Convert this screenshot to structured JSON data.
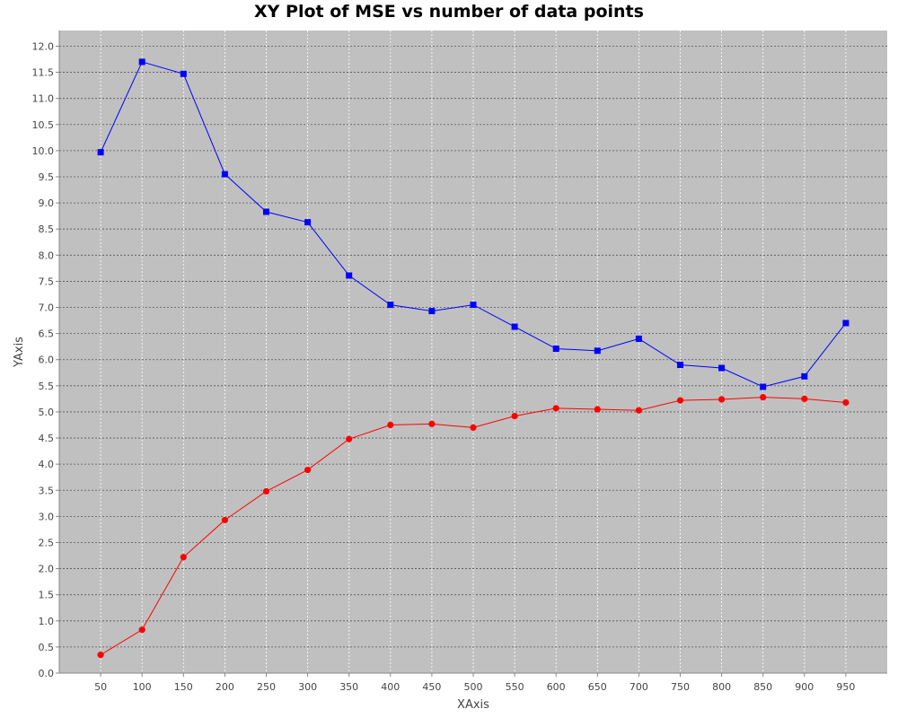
{
  "chart_data": {
    "type": "line",
    "title": "XY Plot of MSE vs number of data points",
    "xlabel": "XAxis",
    "ylabel": "YAxis",
    "x": [
      50,
      100,
      150,
      200,
      250,
      300,
      350,
      400,
      450,
      500,
      550,
      600,
      650,
      700,
      750,
      800,
      850,
      900,
      950
    ],
    "xticks": [
      "50",
      "100",
      "150",
      "200",
      "250",
      "300",
      "350",
      "400",
      "450",
      "500",
      "550",
      "600",
      "650",
      "700",
      "750",
      "800",
      "850",
      "900",
      "950"
    ],
    "xlim": [
      0,
      1000
    ],
    "ylim": [
      0,
      12.3
    ],
    "yticks": [
      "0.0",
      "0.5",
      "1.0",
      "1.5",
      "2.0",
      "2.5",
      "3.0",
      "3.5",
      "4.0",
      "4.5",
      "5.0",
      "5.5",
      "6.0",
      "6.5",
      "7.0",
      "7.5",
      "8.0",
      "8.5",
      "9.0",
      "9.5",
      "10.0",
      "10.5",
      "11.0",
      "11.5",
      "12.0"
    ],
    "grid": true,
    "series": [
      {
        "color": "#0000ff",
        "marker": "square",
        "values": [
          9.97,
          11.7,
          11.47,
          9.55,
          8.83,
          8.63,
          7.61,
          7.05,
          6.93,
          7.05,
          6.63,
          6.21,
          6.17,
          6.4,
          5.9,
          5.84,
          5.48,
          5.68,
          6.7
        ]
      },
      {
        "color": "#ff0000",
        "marker": "circle",
        "values": [
          0.35,
          0.83,
          2.22,
          2.93,
          3.48,
          3.89,
          4.48,
          4.75,
          4.77,
          4.7,
          4.92,
          5.07,
          5.05,
          5.03,
          5.22,
          5.24,
          5.28,
          5.25,
          5.18
        ]
      }
    ]
  },
  "colors": {
    "plot_background": "#c0c0c0",
    "grid_y": "#555555",
    "grid_x": "#ffffff"
  }
}
